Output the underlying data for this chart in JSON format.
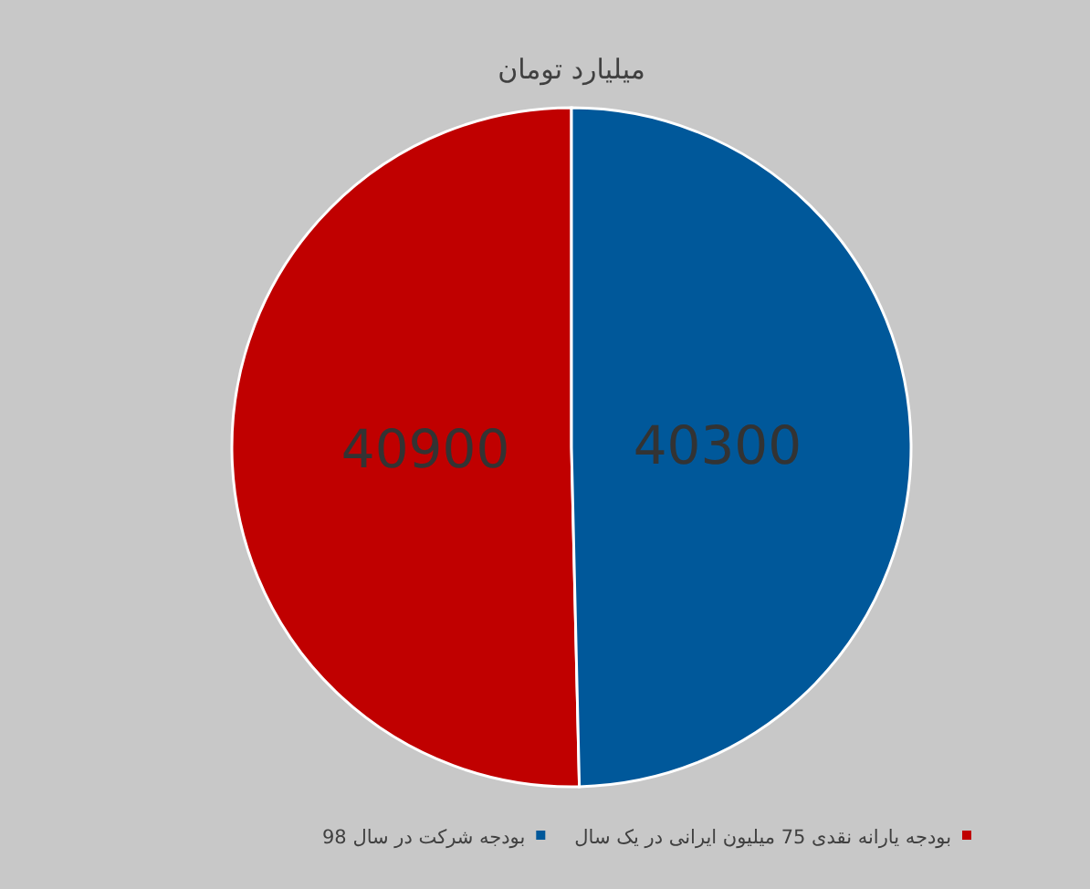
{
  "chart_data": {
    "type": "pie",
    "title": "میلیارد تومان",
    "categories": [
      "بودجه یارانه نقدی 75 میلیون ایرانی در یک سال",
      "بودجه شرکت در سال 98"
    ],
    "values": [
      40900,
      40300
    ],
    "colors": [
      "#c00000",
      "#00589a"
    ],
    "data_labels": true,
    "legend": "bottom"
  }
}
